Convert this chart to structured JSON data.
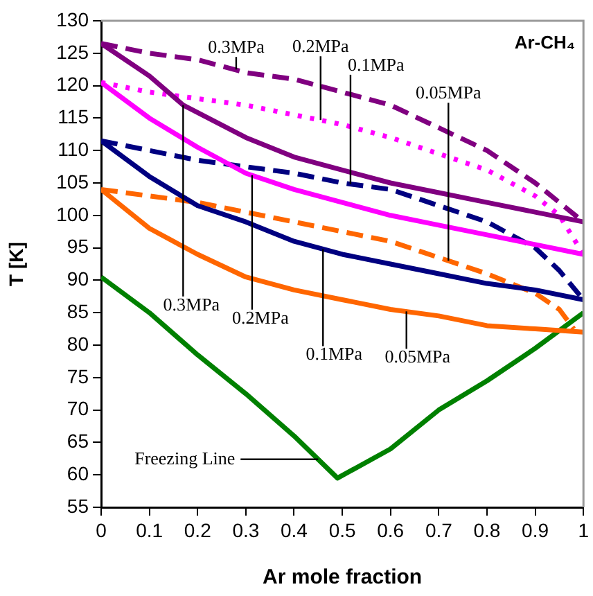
{
  "chart_data": {
    "type": "line",
    "xlabel": "Ar mole fraction",
    "ylabel": "T [K]",
    "xlim": [
      0,
      1
    ],
    "xticks": [
      0,
      0.1,
      0.2,
      0.3,
      0.4,
      0.5,
      0.6,
      0.7,
      0.8,
      0.9,
      1
    ],
    "ylim": [
      55,
      130
    ],
    "yticks": [
      55,
      60,
      65,
      70,
      75,
      80,
      85,
      90,
      95,
      100,
      105,
      110,
      115,
      120,
      125,
      130
    ],
    "grid": false,
    "legend": false,
    "marker": "none",
    "series": [
      {
        "color": "#800080",
        "line_style": "solid",
        "x": [
          0,
          0.1,
          0.17,
          0.3,
          0.4,
          0.5,
          0.6,
          0.7,
          0.8,
          0.9,
          1
        ],
        "values": [
          126.5,
          121.5,
          117,
          112,
          109,
          107,
          105,
          103.5,
          102,
          100.5,
          99
        ]
      },
      {
        "color": "#800080",
        "line_style": "dashed",
        "x": [
          0,
          0.1,
          0.2,
          0.3,
          0.4,
          0.5,
          0.6,
          0.7,
          0.8,
          0.9,
          0.95,
          1
        ],
        "values": [
          126.5,
          125,
          124,
          122,
          121,
          119,
          117,
          113.5,
          110,
          105,
          102,
          99
        ]
      },
      {
        "color": "#ff00ff",
        "line_style": "solid",
        "x": [
          0,
          0.1,
          0.2,
          0.3,
          0.4,
          0.5,
          0.6,
          0.7,
          0.8,
          0.9,
          1
        ],
        "values": [
          120.5,
          115,
          110.5,
          106.5,
          104,
          102,
          100,
          98.5,
          97,
          95.5,
          94
        ]
      },
      {
        "color": "#ff00ff",
        "line_style": "dotted",
        "x": [
          0,
          0.1,
          0.2,
          0.3,
          0.4,
          0.5,
          0.6,
          0.7,
          0.8,
          0.9,
          0.95,
          1
        ],
        "values": [
          120.5,
          119,
          118,
          117,
          115.5,
          114,
          112,
          109.5,
          107,
          103,
          100,
          94
        ]
      },
      {
        "color": "#000080",
        "line_style": "solid",
        "x": [
          0,
          0.1,
          0.2,
          0.3,
          0.4,
          0.5,
          0.6,
          0.7,
          0.8,
          0.9,
          1
        ],
        "values": [
          111.5,
          106,
          101.5,
          99,
          96,
          94,
          92.5,
          91,
          89.5,
          88.5,
          87
        ]
      },
      {
        "color": "#000080",
        "line_style": "dashed",
        "x": [
          0,
          0.1,
          0.2,
          0.3,
          0.4,
          0.5,
          0.6,
          0.7,
          0.8,
          0.9,
          0.95,
          1
        ],
        "values": [
          111.5,
          110,
          108.5,
          107.5,
          106.5,
          105,
          104,
          101.5,
          99,
          95,
          91.5,
          87
        ]
      },
      {
        "color": "#ff6600",
        "line_style": "solid",
        "x": [
          0,
          0.1,
          0.2,
          0.3,
          0.4,
          0.5,
          0.6,
          0.7,
          0.8,
          0.9,
          1
        ],
        "values": [
          104,
          98,
          94,
          90.5,
          88.5,
          87,
          85.5,
          84.5,
          83,
          82.5,
          82
        ]
      },
      {
        "color": "#ff6600",
        "line_style": "dashed",
        "x": [
          0,
          0.1,
          0.2,
          0.3,
          0.4,
          0.5,
          0.6,
          0.7,
          0.8,
          0.9,
          0.95,
          0.98
        ],
        "values": [
          104,
          103,
          102,
          100.5,
          99,
          97.5,
          96,
          93.5,
          91,
          88,
          85.5,
          82.5
        ]
      },
      {
        "color": "#008000",
        "line_style": "solid",
        "x": [
          0,
          0.1,
          0.2,
          0.3,
          0.4,
          0.49,
          0.6,
          0.7,
          0.8,
          0.9,
          1
        ],
        "values": [
          90.5,
          85,
          78.5,
          72.5,
          66,
          59.5,
          64,
          70,
          74.5,
          79.5,
          85
        ]
      }
    ],
    "annotations": [
      {
        "text": "0.3MPa",
        "x": 0.28,
        "y": 122.5
      },
      {
        "text": "0.2MPa",
        "x": 0.455,
        "y": 114.7
      },
      {
        "text": "0.1MPa",
        "x": 0.517,
        "y": 104.8
      },
      {
        "text": "0.05MPa",
        "x": 0.72,
        "y": 93
      },
      {
        "text": "0.3MPa",
        "x": 0.17,
        "y": 117
      },
      {
        "text": "0.2MPa",
        "x": 0.313,
        "y": 106.2
      },
      {
        "text": "0.1MPa",
        "x": 0.46,
        "y": 94.8
      },
      {
        "text": "0.05MPa",
        "x": 0.633,
        "y": 85.2
      },
      {
        "text": "Freezing Line",
        "x": 0.45,
        "y": 62.4
      },
      "Ar-CH₄"
    ]
  }
}
